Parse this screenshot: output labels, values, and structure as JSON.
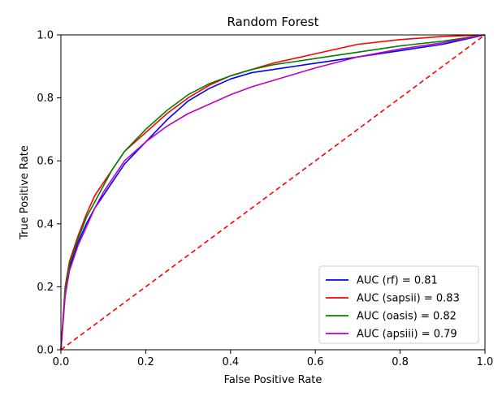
{
  "chart_data": {
    "type": "line",
    "title": "Random Forest",
    "xlabel": "False Positive Rate",
    "ylabel": "True Positive Rate",
    "xlim": [
      0.0,
      1.0
    ],
    "ylim": [
      0.0,
      1.0
    ],
    "xticks": [
      0.0,
      0.2,
      0.4,
      0.6,
      0.8,
      1.0
    ],
    "yticks": [
      0.0,
      0.2,
      0.4,
      0.6,
      0.8,
      1.0
    ],
    "xtick_labels": [
      "0.0",
      "0.2",
      "0.4",
      "0.6",
      "0.8",
      "1.0"
    ],
    "ytick_labels": [
      "0.0",
      "0.2",
      "0.4",
      "0.6",
      "0.8",
      "1.0"
    ],
    "grid": false,
    "legend_position": "lower-right",
    "series": [
      {
        "name": "AUC (rf) = 0.81",
        "color": "#0000ff",
        "x": [
          0.0,
          0.01,
          0.02,
          0.04,
          0.06,
          0.08,
          0.1,
          0.12,
          0.15,
          0.2,
          0.25,
          0.3,
          0.35,
          0.4,
          0.45,
          0.5,
          0.6,
          0.7,
          0.8,
          0.9,
          1.0
        ],
        "y": [
          0.0,
          0.18,
          0.26,
          0.34,
          0.4,
          0.45,
          0.49,
          0.53,
          0.59,
          0.66,
          0.73,
          0.79,
          0.83,
          0.86,
          0.88,
          0.89,
          0.91,
          0.93,
          0.95,
          0.97,
          1.0
        ]
      },
      {
        "name": "AUC (sapsii) = 0.83",
        "color": "#ff0000",
        "x": [
          0.0,
          0.01,
          0.02,
          0.04,
          0.06,
          0.08,
          0.1,
          0.12,
          0.15,
          0.2,
          0.25,
          0.3,
          0.35,
          0.4,
          0.45,
          0.5,
          0.6,
          0.7,
          0.8,
          0.9,
          1.0
        ],
        "y": [
          0.0,
          0.2,
          0.28,
          0.36,
          0.43,
          0.49,
          0.53,
          0.57,
          0.63,
          0.69,
          0.75,
          0.8,
          0.84,
          0.87,
          0.89,
          0.91,
          0.94,
          0.97,
          0.985,
          0.995,
          1.0
        ]
      },
      {
        "name": "AUC (oasis) = 0.82",
        "color": "#008000",
        "x": [
          0.0,
          0.01,
          0.02,
          0.04,
          0.06,
          0.08,
          0.1,
          0.12,
          0.15,
          0.2,
          0.25,
          0.3,
          0.35,
          0.4,
          0.45,
          0.5,
          0.6,
          0.7,
          0.8,
          0.9,
          1.0
        ],
        "y": [
          0.0,
          0.19,
          0.27,
          0.35,
          0.42,
          0.47,
          0.52,
          0.57,
          0.63,
          0.7,
          0.76,
          0.81,
          0.845,
          0.87,
          0.89,
          0.905,
          0.925,
          0.945,
          0.965,
          0.98,
          1.0
        ]
      },
      {
        "name": "AUC (apsiii) = 0.79",
        "color": "#bf00bf",
        "x": [
          0.0,
          0.01,
          0.02,
          0.04,
          0.06,
          0.08,
          0.1,
          0.12,
          0.15,
          0.2,
          0.25,
          0.3,
          0.35,
          0.4,
          0.45,
          0.5,
          0.6,
          0.7,
          0.8,
          0.9,
          1.0
        ],
        "y": [
          0.0,
          0.17,
          0.25,
          0.33,
          0.39,
          0.45,
          0.5,
          0.54,
          0.6,
          0.66,
          0.71,
          0.75,
          0.78,
          0.81,
          0.835,
          0.855,
          0.895,
          0.93,
          0.955,
          0.975,
          1.0
        ]
      },
      {
        "name": "",
        "color": "#ff0000",
        "style": "dashed",
        "x": [
          0.0,
          1.0
        ],
        "y": [
          0.0,
          1.0
        ]
      }
    ]
  }
}
